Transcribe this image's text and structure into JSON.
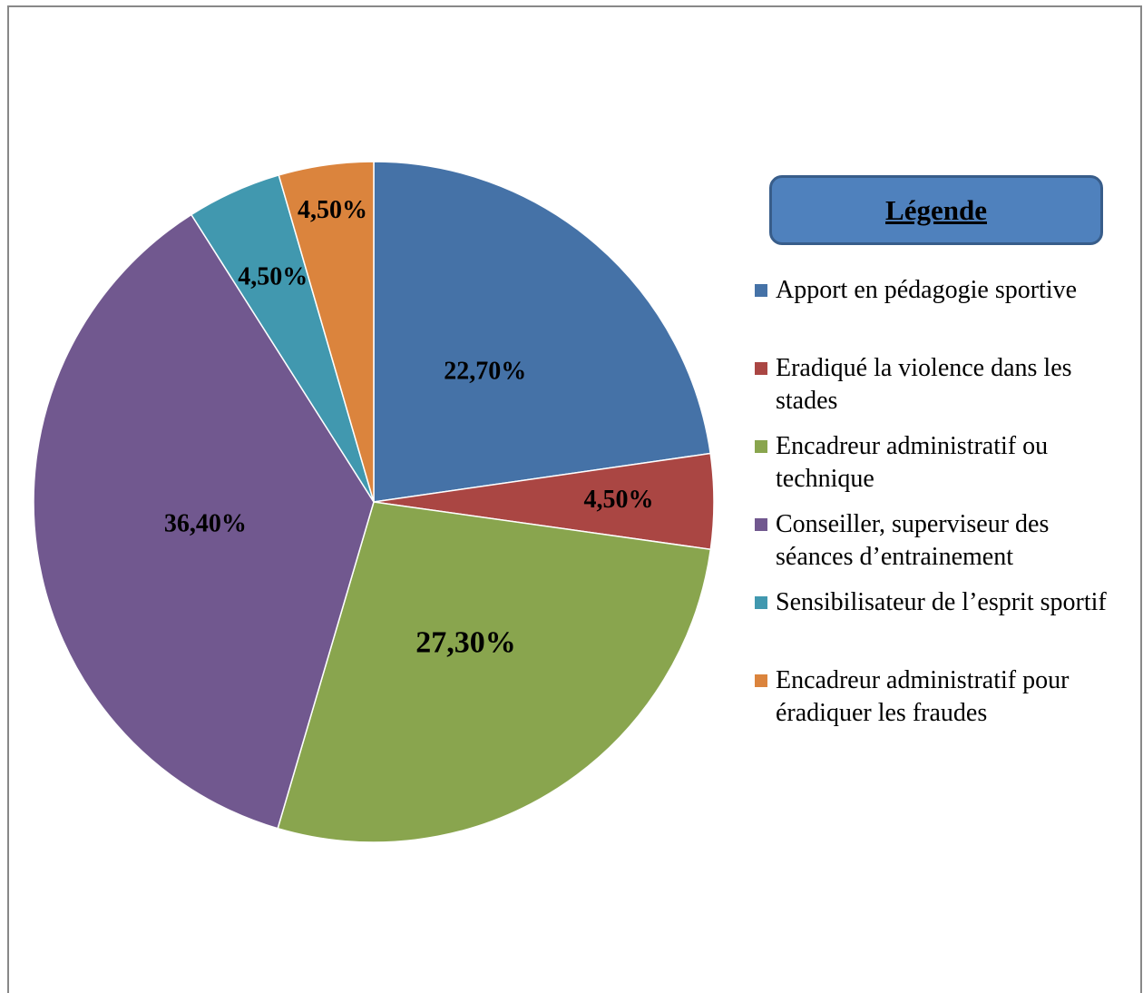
{
  "chart_data": {
    "type": "pie",
    "legend_title": "Légende",
    "categories": [
      "Apport en pédagogie sportive",
      "Eradiqué la violence dans les stades",
      "Encadreur administratif ou technique",
      "Conseiller, superviseur des séances d’entrainement",
      "Sensibilisateur de l’esprit sportif",
      "Encadreur administratif pour éradiquer les fraudes"
    ],
    "values": [
      22.7,
      4.5,
      27.3,
      36.4,
      4.5,
      4.5
    ],
    "value_labels": [
      "22,70%",
      "4,50%",
      "27,30%",
      "36,40%",
      "4,50%",
      "4,50%"
    ],
    "colors": [
      "#4572a7",
      "#aa4643",
      "#89a54e",
      "#71588f",
      "#4198af",
      "#db843d"
    ],
    "legend": "right"
  }
}
